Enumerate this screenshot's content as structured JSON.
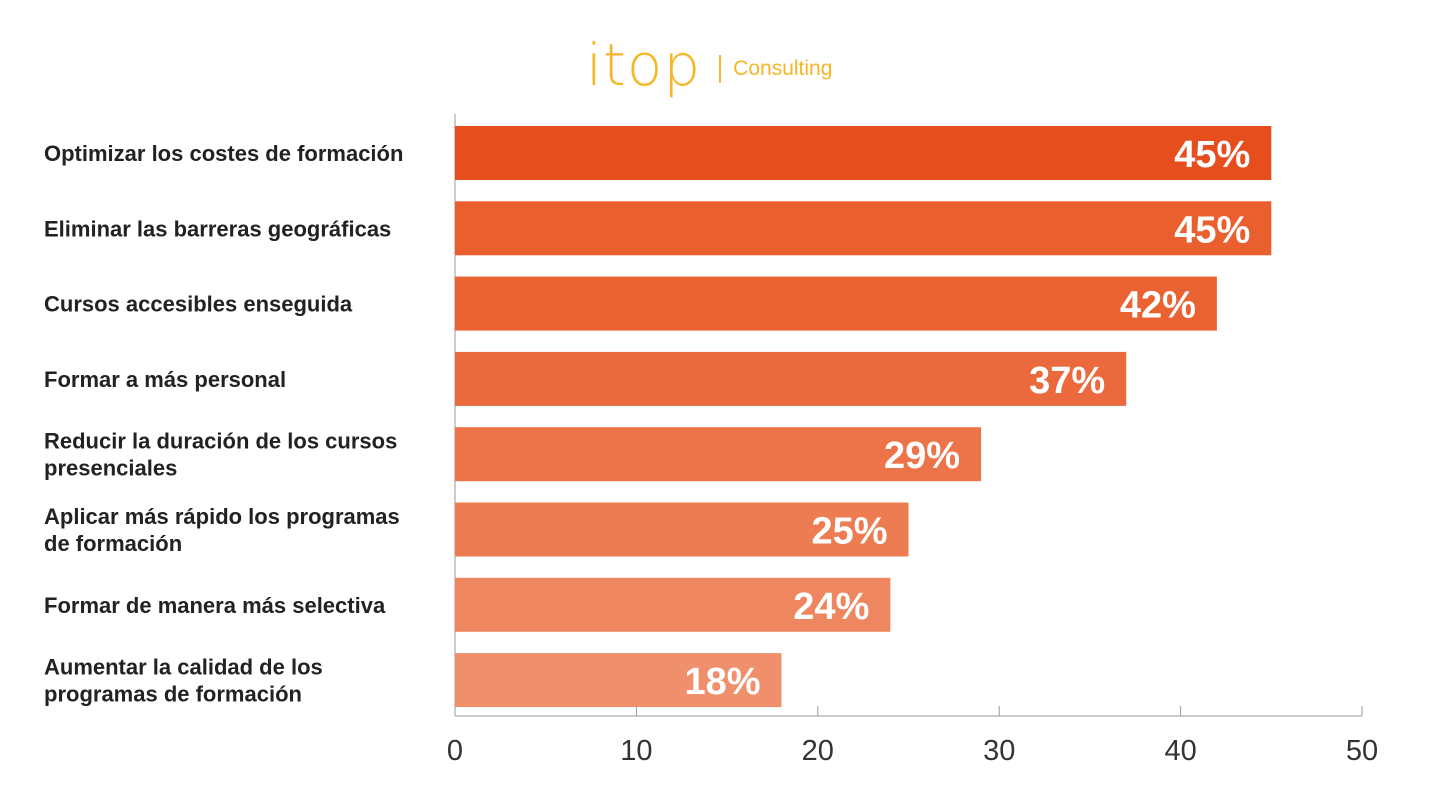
{
  "logo": {
    "word": "itop",
    "sub": "Consulting",
    "color": "#f6b625"
  },
  "chart_data": {
    "type": "bar",
    "orientation": "horizontal",
    "categories": [
      [
        "Optimizar los costes de formación"
      ],
      [
        "Eliminar las barreras geográficas"
      ],
      [
        "Cursos accesibles enseguida"
      ],
      [
        "Formar a más personal"
      ],
      [
        "Reducir la duración de los cursos",
        "presenciales"
      ],
      [
        "Aplicar más rápido los programas",
        "de formación"
      ],
      [
        "Formar de manera más selectiva"
      ],
      [
        "Aumentar la calidad de los",
        "programas de formación"
      ]
    ],
    "values": [
      45,
      45,
      42,
      37,
      29,
      25,
      24,
      18
    ],
    "value_labels": [
      "45%",
      "45%",
      "42%",
      "37%",
      "29%",
      "25%",
      "24%",
      "18%"
    ],
    "colors": [
      "#e64e1e",
      "#e9602e",
      "#ea6232",
      "#eb6a3d",
      "#ec7448",
      "#ed7c53",
      "#ee865f",
      "#ef8f6b"
    ],
    "xlim": [
      0,
      50
    ],
    "xticks": [
      0,
      10,
      20,
      30,
      40,
      50
    ],
    "xtick_labels": [
      "0",
      "10",
      "20",
      "30",
      "40",
      "50"
    ],
    "title": "",
    "xlabel": "",
    "ylabel": "",
    "grid": false,
    "legend": "none"
  }
}
